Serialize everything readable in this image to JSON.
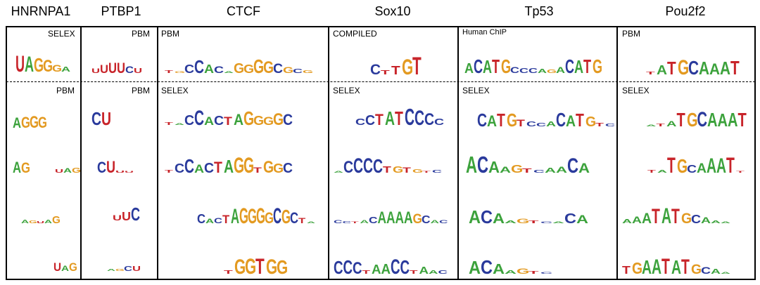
{
  "columns": [
    {
      "name": "HNRNPA1"
    },
    {
      "name": "PTBP1"
    },
    {
      "name": "CTCF"
    },
    {
      "name": "Sox10"
    },
    {
      "name": "Tp53"
    },
    {
      "name": "Pou2f2"
    }
  ],
  "colors": {
    "A": "#3ca23c",
    "C": "#2a3a9c",
    "G": "#e39a21",
    "U": "#c8242a",
    "T": "#c8242a"
  },
  "cells": [
    [
      {
        "source": "SELEX",
        "motif": [
          [
            "U",
            0.95
          ],
          [
            "A",
            0.9
          ],
          [
            "G",
            0.8
          ],
          [
            "G",
            0.7
          ],
          [
            "G",
            0.4
          ],
          [
            "A",
            0.3
          ]
        ]
      },
      {
        "source": "PBM",
        "motif": [
          [
            "A",
            0.7
          ],
          [
            "G",
            0.75
          ],
          [
            "G",
            0.8
          ],
          [
            "G",
            0.75
          ]
        ]
      },
      {
        "source": "",
        "motif": [
          [
            "A",
            0.75
          ],
          [
            "G",
            0.7
          ],
          [
            "",
            0
          ],
          [
            "",
            0
          ],
          [
            "",
            0
          ],
          [
            "U",
            0.25
          ],
          [
            "A",
            0.3
          ],
          [
            "G",
            0.35
          ]
        ]
      },
      {
        "source": "",
        "motif": [
          [
            "A",
            0.25
          ],
          [
            "G",
            0.2
          ],
          [
            "U",
            0.15
          ],
          [
            "A",
            0.25
          ],
          [
            "G",
            0.55
          ]
        ]
      },
      {
        "source": "",
        "motif": [
          [
            "U",
            0.6
          ],
          [
            "A",
            0.4
          ],
          [
            "G",
            0.6
          ]
        ]
      }
    ],
    [
      {
        "source": "PBM",
        "motif": [
          [
            "U",
            0.3
          ],
          [
            "U",
            0.55
          ],
          [
            "U",
            0.7
          ],
          [
            "U",
            0.7
          ],
          [
            "C",
            0.45
          ],
          [
            "U",
            0.35
          ]
        ]
      },
      {
        "source": "PBM",
        "motif": [
          [
            "C",
            0.75
          ],
          [
            "U",
            0.75
          ]
        ]
      },
      {
        "source": "",
        "motif": [
          [
            "C",
            0.7
          ],
          [
            "U",
            0.75
          ],
          [
            "U",
            0.15
          ],
          [
            "U",
            0.1
          ]
        ]
      },
      {
        "source": "",
        "motif": [
          [
            "U",
            0.35
          ],
          [
            "U",
            0.55
          ],
          [
            "C",
            0.8
          ]
        ]
      },
      {
        "source": "",
        "motif": [
          [
            "A",
            0.15
          ],
          [
            "G",
            0.15
          ],
          [
            "C",
            0.35
          ],
          [
            "U",
            0.35
          ]
        ]
      }
    ],
    [
      {
        "source": "PBM",
        "motif": [
          [
            "T",
            0.15
          ],
          [
            "G",
            0.1
          ],
          [
            "C",
            0.5
          ],
          [
            "C",
            0.75
          ],
          [
            "A",
            0.5
          ],
          [
            "C",
            0.4
          ],
          [
            "A",
            0.1
          ],
          [
            "G",
            0.6
          ],
          [
            "G",
            0.5
          ],
          [
            "G",
            0.8
          ],
          [
            "G",
            0.7
          ],
          [
            "C",
            0.55
          ],
          [
            "G",
            0.35
          ],
          [
            "C",
            0.25
          ],
          [
            "G",
            0.15
          ]
        ]
      },
      {
        "source": "SELEX",
        "motif": [
          [
            "T",
            0.15
          ],
          [
            "A",
            0.1
          ],
          [
            "C",
            0.55
          ],
          [
            "C",
            0.8
          ],
          [
            "A",
            0.45
          ],
          [
            "C",
            0.5
          ],
          [
            "T",
            0.45
          ],
          [
            "A",
            0.6
          ],
          [
            "G",
            0.75
          ],
          [
            "G",
            0.5
          ],
          [
            "G",
            0.45
          ],
          [
            "G",
            0.65
          ],
          [
            "C",
            0.6
          ]
        ]
      },
      {
        "source": "",
        "motif": [
          [
            "T",
            0.15
          ],
          [
            "C",
            0.5
          ],
          [
            "C",
            0.75
          ],
          [
            "A",
            0.45
          ],
          [
            "C",
            0.55
          ],
          [
            "T",
            0.6
          ],
          [
            "A",
            0.7
          ],
          [
            "G",
            0.85
          ],
          [
            "G",
            0.85
          ],
          [
            "T",
            0.3
          ],
          [
            "G",
            0.65
          ],
          [
            "G",
            0.5
          ],
          [
            "C",
            0.55
          ]
        ]
      },
      {
        "source": "",
        "motif": [
          [
            "C",
            0.5
          ],
          [
            "A",
            0.25
          ],
          [
            "C",
            0.3
          ],
          [
            "T",
            0.45
          ],
          [
            "A",
            0.8
          ],
          [
            "G",
            0.85
          ],
          [
            "G",
            0.8
          ],
          [
            "G",
            0.85
          ],
          [
            "G",
            0.6
          ],
          [
            "C",
            0.85
          ],
          [
            "G",
            0.75
          ],
          [
            "C",
            0.6
          ],
          [
            "T",
            0.3
          ],
          [
            "A",
            0.1
          ]
        ]
      },
      {
        "source": "",
        "motif": [
          [
            "T",
            0.2
          ],
          [
            "G",
            0.8
          ],
          [
            "G",
            0.85
          ],
          [
            "T",
            0.85
          ],
          [
            "G",
            0.8
          ],
          [
            "G",
            0.75
          ]
        ]
      }
    ],
    [
      {
        "source": "COMPILED",
        "motif": [
          [
            "C",
            0.55
          ],
          [
            "T",
            0.2
          ],
          [
            "T",
            0.45
          ],
          [
            "G",
            0.8
          ],
          [
            "T",
            0.9
          ]
        ]
      },
      {
        "source": "SELEX",
        "motif": [
          [
            "C",
            0.35
          ],
          [
            "C",
            0.55
          ],
          [
            "T",
            0.6
          ],
          [
            "A",
            0.75
          ],
          [
            "T",
            0.75
          ],
          [
            "C",
            0.9
          ],
          [
            "C",
            0.8
          ],
          [
            "C",
            0.65
          ],
          [
            "C",
            0.35
          ]
        ]
      },
      {
        "source": "",
        "motif": [
          [
            "A",
            0.1
          ],
          [
            "C",
            0.65
          ],
          [
            "C",
            0.8
          ],
          [
            "C",
            0.8
          ],
          [
            "C",
            0.75
          ],
          [
            "T",
            0.35
          ],
          [
            "G",
            0.35
          ],
          [
            "T",
            0.3
          ],
          [
            "G",
            0.2
          ],
          [
            "T",
            0.1
          ],
          [
            "C",
            0.15
          ]
        ]
      },
      {
        "source": "",
        "motif": [
          [
            "C",
            0.2
          ],
          [
            "C",
            0.15
          ],
          [
            "T",
            0.1
          ],
          [
            "A",
            0.2
          ],
          [
            "C",
            0.4
          ],
          [
            "A",
            0.75
          ],
          [
            "A",
            0.75
          ],
          [
            "A",
            0.75
          ],
          [
            "A",
            0.75
          ],
          [
            "G",
            0.6
          ],
          [
            "C",
            0.5
          ],
          [
            "A",
            0.2
          ],
          [
            "C",
            0.2
          ]
        ]
      },
      {
        "source": "",
        "motif": [
          [
            "C",
            0.7
          ],
          [
            "C",
            0.75
          ],
          [
            "C",
            0.65
          ],
          [
            "T",
            0.2
          ],
          [
            "A",
            0.5
          ],
          [
            "A",
            0.55
          ],
          [
            "C",
            0.8
          ],
          [
            "C",
            0.75
          ],
          [
            "T",
            0.2
          ],
          [
            "A",
            0.4
          ],
          [
            "A",
            0.2
          ],
          [
            "C",
            0.2
          ]
        ]
      }
    ],
    [
      {
        "source": "Human ChIP",
        "motif": [
          [
            "A",
            0.6
          ],
          [
            "C",
            0.8
          ],
          [
            "A",
            0.75
          ],
          [
            "T",
            0.8
          ],
          [
            "G",
            0.8
          ],
          [
            "C",
            0.35
          ],
          [
            "C",
            0.3
          ],
          [
            "C",
            0.3
          ],
          [
            "A",
            0.25
          ],
          [
            "G",
            0.2
          ],
          [
            "A",
            0.35
          ],
          [
            "C",
            0.8
          ],
          [
            "A",
            0.75
          ],
          [
            "T",
            0.8
          ],
          [
            "G",
            0.8
          ]
        ]
      },
      {
        "source": "SELEX",
        "motif": [
          [
            "C",
            0.75
          ],
          [
            "A",
            0.65
          ],
          [
            "T",
            0.75
          ],
          [
            "G",
            0.75
          ],
          [
            "T",
            0.4
          ],
          [
            "C",
            0.3
          ],
          [
            "C",
            0.2
          ],
          [
            "A",
            0.3
          ],
          [
            "C",
            0.8
          ],
          [
            "A",
            0.65
          ],
          [
            "T",
            0.75
          ],
          [
            "G",
            0.6
          ],
          [
            "T",
            0.2
          ],
          [
            "C",
            0.15
          ]
        ]
      },
      {
        "source": "",
        "motif": [
          [
            "A",
            0.85
          ],
          [
            "C",
            0.85
          ],
          [
            "A",
            0.6
          ],
          [
            "A",
            0.3
          ],
          [
            "G",
            0.4
          ],
          [
            "T",
            0.2
          ],
          [
            "C",
            0.15
          ],
          [
            "A",
            0.25
          ],
          [
            "A",
            0.3
          ],
          [
            "C",
            0.75
          ],
          [
            "A",
            0.5
          ]
        ]
      },
      {
        "source": "",
        "motif": [
          [
            "A",
            0.7
          ],
          [
            "C",
            0.7
          ],
          [
            "A",
            0.55
          ],
          [
            "A",
            0.15
          ],
          [
            "G",
            0.25
          ],
          [
            "T",
            0.15
          ],
          [
            "C",
            0.1
          ],
          [
            "A",
            0.1
          ],
          [
            "C",
            0.55
          ],
          [
            "A",
            0.45
          ]
        ]
      },
      {
        "source": "",
        "motif": [
          [
            "A",
            0.7
          ],
          [
            "C",
            0.75
          ],
          [
            "A",
            0.55
          ],
          [
            "A",
            0.2
          ],
          [
            "G",
            0.3
          ],
          [
            "T",
            0.15
          ],
          [
            "C",
            0.1
          ]
        ]
      }
    ],
    [
      {
        "source": "PBM",
        "motif": [
          [
            "T",
            0.15
          ],
          [
            "A",
            0.5
          ],
          [
            "T",
            0.7
          ],
          [
            "G",
            0.8
          ],
          [
            "C",
            0.75
          ],
          [
            "A",
            0.7
          ],
          [
            "A",
            0.6
          ],
          [
            "A",
            0.7
          ],
          [
            "T",
            0.75
          ]
        ]
      },
      {
        "source": "SELEX",
        "motif": [
          [
            "A",
            0.1
          ],
          [
            "T",
            0.15
          ],
          [
            "A",
            0.3
          ],
          [
            "T",
            0.75
          ],
          [
            "G",
            0.75
          ],
          [
            "C",
            0.8
          ],
          [
            "A",
            0.75
          ],
          [
            "A",
            0.7
          ],
          [
            "A",
            0.75
          ],
          [
            "T",
            0.75
          ]
        ]
      },
      {
        "source": "",
        "motif": [
          [
            "T",
            0.15
          ],
          [
            "A",
            0.15
          ],
          [
            "T",
            0.8
          ],
          [
            "G",
            0.7
          ],
          [
            "C",
            0.4
          ],
          [
            "A",
            0.5
          ],
          [
            "A",
            0.75
          ],
          [
            "A",
            0.75
          ],
          [
            "T",
            0.8
          ],
          [
            "T",
            0.1
          ]
        ]
      },
      {
        "source": "",
        "motif": [
          [
            "A",
            0.2
          ],
          [
            "A",
            0.35
          ],
          [
            "A",
            0.55
          ],
          [
            "T",
            0.75
          ],
          [
            "A",
            0.8
          ],
          [
            "T",
            0.75
          ],
          [
            "G",
            0.55
          ],
          [
            "C",
            0.45
          ],
          [
            "A",
            0.3
          ],
          [
            "A",
            0.15
          ],
          [
            "A",
            0.1
          ]
        ]
      },
      {
        "source": "",
        "motif": [
          [
            "T",
            0.4
          ],
          [
            "G",
            0.6
          ],
          [
            "A",
            0.7
          ],
          [
            "A",
            0.75
          ],
          [
            "T",
            0.8
          ],
          [
            "A",
            0.7
          ],
          [
            "T",
            0.75
          ],
          [
            "G",
            0.5
          ],
          [
            "C",
            0.35
          ],
          [
            "A",
            0.25
          ],
          [
            "A",
            0.1
          ]
        ]
      }
    ]
  ]
}
